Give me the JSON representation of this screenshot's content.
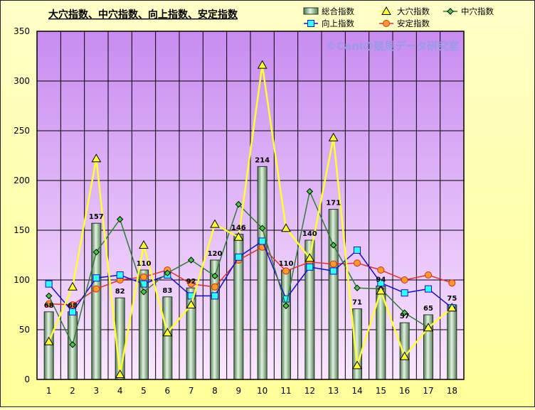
{
  "chart_data": {
    "type": "bar",
    "title": "大穴指数、中穴指数、向上指数、安定指数",
    "watermark": "©Caniの競馬データ研究室",
    "categories": [
      "1",
      "2",
      "3",
      "4",
      "5",
      "6",
      "7",
      "8",
      "9",
      "10",
      "11",
      "12",
      "13",
      "14",
      "15",
      "16",
      "17",
      "18"
    ],
    "ylim": [
      0,
      350
    ],
    "yticks": [
      0,
      50,
      100,
      150,
      200,
      250,
      300,
      350
    ],
    "grid": true,
    "legend_position": "top-right",
    "series": [
      {
        "name": "総合指数",
        "type": "bar",
        "color": "#9cc49c",
        "values": [
          68,
          68,
          157,
          82,
          110,
          83,
          92,
          120,
          146,
          214,
          110,
          140,
          171,
          71,
          94,
          57,
          65,
          75
        ],
        "labels": [
          "68",
          "68",
          "157",
          "82",
          "110",
          "83",
          "92",
          "120",
          "146",
          "214",
          "110",
          "140",
          "171",
          "71",
          "94",
          "57",
          "65",
          "75"
        ]
      },
      {
        "name": "大穴指数",
        "type": "line",
        "marker": "triangle",
        "color": "#ffff33",
        "values": [
          38,
          93,
          222,
          5,
          135,
          47,
          75,
          156,
          143,
          316,
          152,
          122,
          243,
          14,
          89,
          23,
          52,
          72
        ]
      },
      {
        "name": "中穴指数",
        "type": "line",
        "marker": "diamond",
        "color": "#2e7d32",
        "values": [
          84,
          35,
          128,
          161,
          88,
          107,
          120,
          104,
          176,
          152,
          74,
          189,
          135,
          92,
          91,
          67,
          52,
          72
        ]
      },
      {
        "name": "向上指数",
        "type": "line",
        "marker": "square",
        "color": "#1010cc",
        "values": [
          96,
          68,
          102,
          105,
          96,
          105,
          84,
          84,
          123,
          139,
          81,
          113,
          109,
          130,
          97,
          87,
          91,
          72
        ]
      },
      {
        "name": "安定指数",
        "type": "line",
        "marker": "circle",
        "color": "#e03030",
        "values": [
          76,
          75,
          91,
          100,
          103,
          110,
          96,
          93,
          120,
          133,
          109,
          118,
          116,
          117,
          110,
          100,
          105,
          97
        ]
      }
    ]
  }
}
